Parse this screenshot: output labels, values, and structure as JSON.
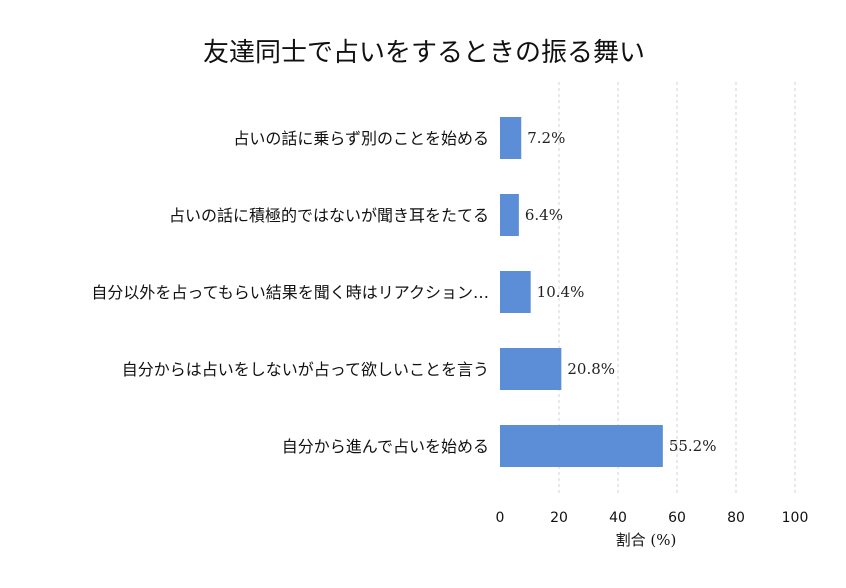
{
  "chart_data": {
    "type": "bar",
    "orientation": "horizontal",
    "title": "友達同士で占いをするときの振る舞い",
    "xlabel": "割合 (%)",
    "ylabel": "",
    "xlim": [
      0,
      100
    ],
    "xticks": [
      0,
      20,
      40,
      60,
      80,
      100
    ],
    "grid": true,
    "bar_color": "#5b8ed6",
    "categories": [
      "占いの話に乗らず別のことを始める",
      "占いの話に積極的ではないが聞き耳をたてる",
      "自分以外を占ってもらい結果を聞く時はリアクション…",
      "自分からは占いをしないが占って欲しいことを言う",
      "自分から進んで占いを始める"
    ],
    "values": [
      7.2,
      6.4,
      10.4,
      20.8,
      55.2
    ],
    "value_labels": [
      "7.2%",
      "6.4%",
      "10.4%",
      "20.8%",
      "55.2%"
    ]
  }
}
